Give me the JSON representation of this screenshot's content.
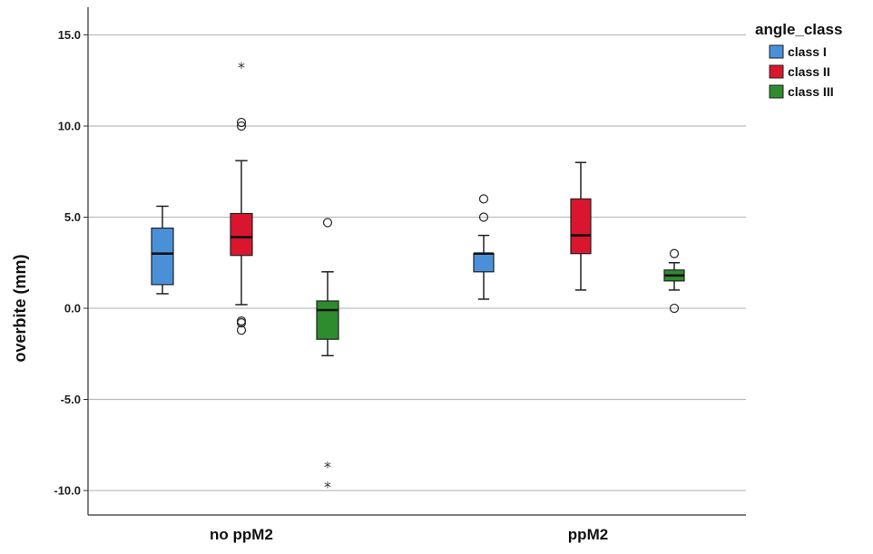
{
  "chart_data": {
    "type": "boxplot",
    "ylabel": "overbite (mm)",
    "xlabel": "",
    "ylim": [
      -11.0,
      16.5
    ],
    "yticks": [
      15.0,
      10.0,
      5.0,
      0.0,
      -5.0,
      -10.0
    ],
    "ytick_labels": [
      "15.0",
      "10.0",
      "5.0",
      "0.0",
      "-5.0",
      "-10.0"
    ],
    "grid": "horizontal",
    "legend": {
      "title": "angle_class",
      "position": "top-right"
    },
    "categories": [
      "no ppM2",
      "ppM2"
    ],
    "series": [
      {
        "name": "class I",
        "color": "#4a90d9",
        "boxes": [
          {
            "category": "no ppM2",
            "min": 0.8,
            "q1": 1.3,
            "median": 3.0,
            "q3": 4.4,
            "max": 5.6,
            "outliers": [],
            "extremes": []
          },
          {
            "category": "ppM2",
            "min": 0.5,
            "q1": 2.0,
            "median": 3.0,
            "q3": 3.0,
            "max": 4.0,
            "outliers": [
              6.0,
              5.0
            ],
            "extremes": []
          }
        ]
      },
      {
        "name": "class II",
        "color": "#d9162e",
        "boxes": [
          {
            "category": "no ppM2",
            "min": 0.2,
            "q1": 2.9,
            "median": 3.9,
            "q3": 5.2,
            "max": 8.1,
            "outliers": [
              10.2,
              10.0,
              -0.7,
              -0.8,
              -1.2
            ],
            "extremes": [
              13.2
            ]
          },
          {
            "category": "ppM2",
            "min": 1.0,
            "q1": 3.0,
            "median": 4.0,
            "q3": 6.0,
            "max": 8.0,
            "outliers": [],
            "extremes": []
          }
        ]
      },
      {
        "name": "class III",
        "color": "#2e8b2e",
        "boxes": [
          {
            "category": "no ppM2",
            "min": -2.6,
            "q1": -1.7,
            "median": -0.1,
            "q3": 0.4,
            "max": 2.0,
            "outliers": [
              4.7
            ],
            "extremes": [
              -8.7,
              -9.8
            ]
          },
          {
            "category": "ppM2",
            "min": 1.0,
            "q1": 1.5,
            "median": 1.8,
            "q3": 2.1,
            "max": 2.5,
            "outliers": [
              3.0,
              0.0
            ],
            "extremes": []
          }
        ]
      }
    ]
  }
}
